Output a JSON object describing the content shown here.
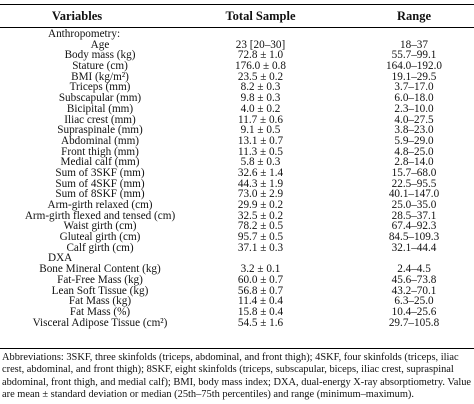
{
  "table": {
    "headers": {
      "variables": "Variables",
      "total_sample": "Total Sample",
      "range": "Range"
    },
    "rows": [
      {
        "variable": "Anthropometry:",
        "total": "",
        "range": "",
        "section": true
      },
      {
        "variable": "Age",
        "total": "23 [20–30]",
        "range": "18–37"
      },
      {
        "variable": "Body mass (kg)",
        "total": "72.8 ± 1.0",
        "range": "55.7–99.1"
      },
      {
        "variable": "Stature (cm)",
        "total": "176.0 ± 0.8",
        "range": "164.0–192.0"
      },
      {
        "variable": "BMI (kg/m²)",
        "total": "23.5 ± 0.2",
        "range": "19.1–29.5"
      },
      {
        "variable": "Triceps (mm)",
        "total": "8.2 ± 0.3",
        "range": "3.7–17.0"
      },
      {
        "variable": "Subscapular (mm)",
        "total": "9.8 ± 0.3",
        "range": "6.0–18.0"
      },
      {
        "variable": "Bicipital (mm)",
        "total": "4.0 ± 0.2",
        "range": "2.3–10.0"
      },
      {
        "variable": "Iliac crest (mm)",
        "total": "11.7 ± 0.6",
        "range": "4.0–27.5"
      },
      {
        "variable": "Supraspinale (mm)",
        "total": "9.1 ± 0.5",
        "range": "3.8–23.0"
      },
      {
        "variable": "Abdominal (mm)",
        "total": "13.1 ± 0.7",
        "range": "5.9–29.0"
      },
      {
        "variable": "Front thigh (mm)",
        "total": "11.3 ± 0.5",
        "range": "4.8–25.0"
      },
      {
        "variable": "Medial calf (mm)",
        "total": "5.8 ± 0.3",
        "range": "2.8–14.0"
      },
      {
        "variable": "Sum of 3SKF (mm)",
        "total": "32.6 ± 1.4",
        "range": "15.7–68.0"
      },
      {
        "variable": "Sum of 4SKF (mm)",
        "total": "44.3 ± 1.9",
        "range": "22.5–95.5"
      },
      {
        "variable": "Sum of 8SKF (mm)",
        "total": "73.0 ± 2.9",
        "range": "40.1–147.0"
      },
      {
        "variable": "Arm-girth relaxed (cm)",
        "total": "29.9 ± 0.2",
        "range": "25.0–35.0"
      },
      {
        "variable": "Arm-girth flexed and tensed (cm)",
        "total": "32.5 ± 0.2",
        "range": "28.5–37.1"
      },
      {
        "variable": "Waist girth (cm)",
        "total": "78.2 ± 0.5",
        "range": "67.4–92.3"
      },
      {
        "variable": "Gluteal girth (cm)",
        "total": "95.7 ± 0.5",
        "range": "84.5–109.3"
      },
      {
        "variable": "Calf girth (cm)",
        "total": "37.1 ± 0.3",
        "range": "32.1–44.4"
      },
      {
        "variable": "DXA",
        "total": "",
        "range": "",
        "section": true
      },
      {
        "variable": "Bone Mineral Content (kg)",
        "total": "3.2 ± 0.1",
        "range": "2.4–4.5"
      },
      {
        "variable": "Fat-Free Mass (kg)",
        "total": "60.0 ± 0.7",
        "range": "45.6–73.8"
      },
      {
        "variable": "Lean Soft Tissue (kg)",
        "total": "56.8 ± 0.7",
        "range": "43.2–70.1"
      },
      {
        "variable": "Fat Mass (kg)",
        "total": "11.4 ± 0.4",
        "range": "6.3–25.0"
      },
      {
        "variable": "Fat Mass (%)",
        "total": "15.8 ± 0.4",
        "range": "10.4–25.6"
      },
      {
        "variable": "Visceral Adipose Tissue (cm²)",
        "total": "54.5 ± 1.6",
        "range": "29.7–105.8"
      }
    ]
  },
  "footnote": {
    "lines": [
      "Abbreviations: 3SKF, three skinfolds (triceps, abdominal, and front thigh); 4SKF, four skinfolds (triceps, iliac",
      "crest, abdominal, and front thigh); 8SKF, eight skinfolds (triceps, subscapular, biceps, iliac crest, supraspinal",
      "abdominal, front thigh, and medial calf); BMI, body mass index; DXA, dual-energy X-ray absorptiometry. Value",
      "are mean ± standard deviation or median (25th–75th percentiles) and range (minimum–maximum)."
    ]
  }
}
